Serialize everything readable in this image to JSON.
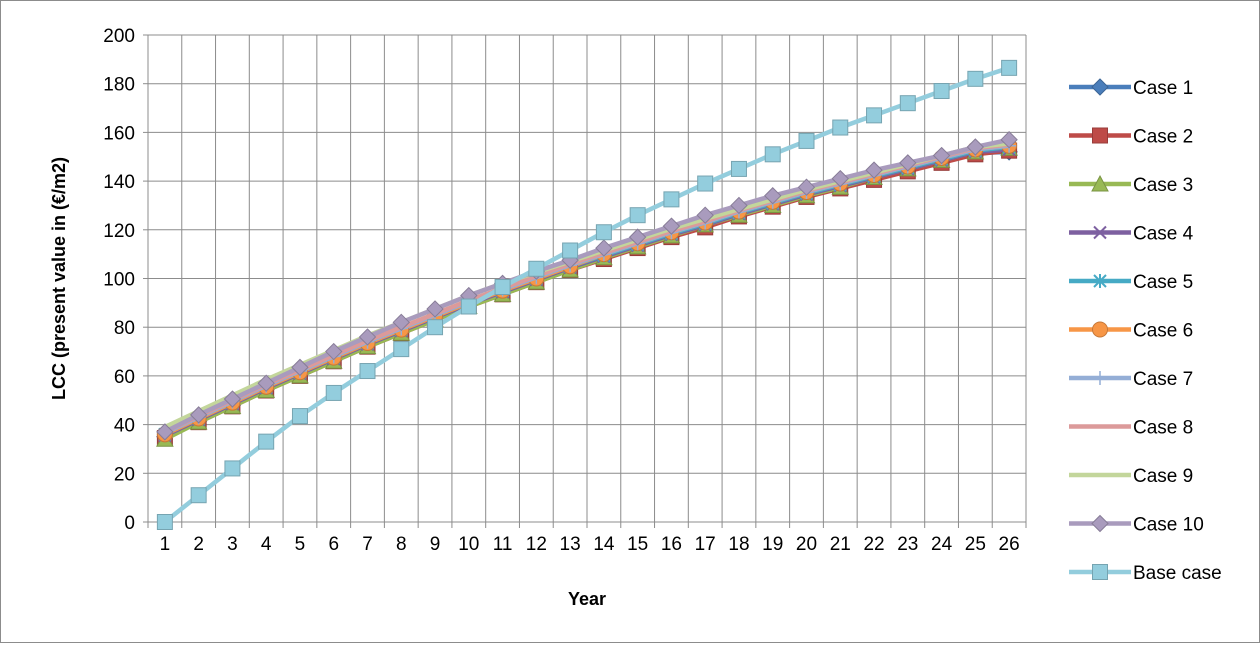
{
  "chart_data": {
    "type": "line",
    "title": "",
    "xlabel": "Year",
    "ylabel": "LCC  (present value in (€/m2)",
    "x": [
      1,
      2,
      3,
      4,
      5,
      6,
      7,
      8,
      9,
      10,
      11,
      12,
      13,
      14,
      15,
      16,
      17,
      18,
      19,
      20,
      21,
      22,
      23,
      24,
      25,
      26
    ],
    "ylim": [
      0,
      200
    ],
    "yticks": [
      0,
      20,
      40,
      60,
      80,
      100,
      120,
      140,
      160,
      180,
      200
    ],
    "grid": true,
    "legend_position": "right",
    "series": [
      {
        "name": "Case 1",
        "color": "#4a7ebb",
        "marker": "diamond",
        "values": [
          35,
          41.5,
          48,
          54.5,
          60.5,
          66.5,
          72.5,
          78,
          83.5,
          89,
          94,
          99,
          104,
          108.5,
          113,
          117.5,
          121.5,
          126,
          130,
          134,
          137.5,
          141,
          144.5,
          148,
          151.5,
          152
        ]
      },
      {
        "name": "Case 2",
        "color": "#be4b48",
        "marker": "square",
        "values": [
          34.5,
          41,
          47.5,
          54,
          60,
          66,
          72,
          77.5,
          83,
          88.5,
          93.5,
          98.5,
          103.5,
          108,
          112.5,
          117,
          121,
          125.5,
          129.5,
          133.5,
          137,
          140.5,
          144,
          147.5,
          151,
          152.5
        ]
      },
      {
        "name": "Case 3",
        "color": "#98b954",
        "marker": "triangle",
        "values": [
          34,
          41,
          47.5,
          54,
          60,
          66,
          72,
          77.5,
          83,
          88.5,
          93.5,
          98.5,
          103.5,
          108.5,
          113,
          117.5,
          122,
          126,
          130,
          134,
          137.5,
          141.5,
          145,
          148.5,
          152,
          153.5
        ]
      },
      {
        "name": "Case 4",
        "color": "#7d60a0",
        "marker": "x",
        "values": [
          35.5,
          42,
          48.5,
          55,
          61,
          67,
          73,
          78.5,
          84,
          89.5,
          94.5,
          99.5,
          104.5,
          109,
          113.5,
          118,
          122,
          126.5,
          130.5,
          134.5,
          138,
          141.5,
          145,
          148.5,
          152,
          153
        ]
      },
      {
        "name": "Case 5",
        "color": "#46aac5",
        "marker": "asterisk",
        "values": [
          36,
          42.5,
          49,
          55.5,
          61.5,
          67.5,
          73.5,
          79,
          84.5,
          90,
          95,
          100,
          105,
          109.5,
          114,
          118.5,
          122.5,
          127,
          131,
          135,
          138.5,
          142,
          145.5,
          149,
          152.5,
          154
        ]
      },
      {
        "name": "Case 6",
        "color": "#f79646",
        "marker": "circle",
        "values": [
          36,
          42.5,
          49,
          55.5,
          61.5,
          67.5,
          73.5,
          79,
          84.5,
          90,
          95,
          100,
          105,
          110,
          114.5,
          119,
          123,
          127.5,
          131.5,
          135.5,
          139,
          142.5,
          146,
          149.5,
          153,
          154.5
        ]
      },
      {
        "name": "Case 7",
        "color": "#94aed6",
        "marker": "plus",
        "values": [
          36.5,
          43,
          49.5,
          56,
          62,
          68,
          74,
          79.5,
          85,
          90.5,
          95.5,
          100.5,
          105.5,
          110,
          114.5,
          119,
          123,
          127.5,
          131.5,
          135.5,
          139,
          142.5,
          146,
          149.5,
          153,
          154.5
        ]
      },
      {
        "name": "Case 8",
        "color": "#dc9a9a",
        "marker": "none",
        "values": [
          37,
          43.5,
          50,
          56.5,
          62.5,
          68.5,
          74.5,
          80,
          85.5,
          91,
          96,
          101,
          106,
          110.5,
          115,
          119.5,
          123.5,
          128,
          132,
          136,
          139.5,
          143,
          146.5,
          150,
          153.5,
          155
        ]
      },
      {
        "name": "Case 9",
        "color": "#c3d69b",
        "marker": "none",
        "values": [
          39,
          45.5,
          52,
          58.5,
          64.5,
          70.5,
          76.5,
          82,
          87.5,
          93,
          98,
          102.5,
          107,
          111.5,
          116,
          120.5,
          124.5,
          128.5,
          132.5,
          136.5,
          140,
          143.5,
          147,
          150.5,
          154,
          155.5
        ]
      },
      {
        "name": "Case 10",
        "color": "#a99bbd",
        "marker": "diamond",
        "values": [
          37,
          44,
          50.5,
          57,
          63.5,
          70,
          76,
          82,
          87.5,
          93,
          98,
          103,
          107.5,
          112.5,
          117,
          121.5,
          126,
          130,
          134,
          137.5,
          141,
          144.5,
          147.5,
          150.5,
          154,
          157
        ]
      },
      {
        "name": "Base case",
        "color": "#93cddd",
        "marker": "square",
        "values": [
          0,
          11,
          22,
          33,
          43.5,
          53,
          62,
          71,
          80,
          88.5,
          96.5,
          104,
          111.5,
          119,
          126,
          132.5,
          139,
          145,
          151,
          156.5,
          162,
          167,
          172,
          177,
          182,
          186.5
        ]
      }
    ]
  }
}
